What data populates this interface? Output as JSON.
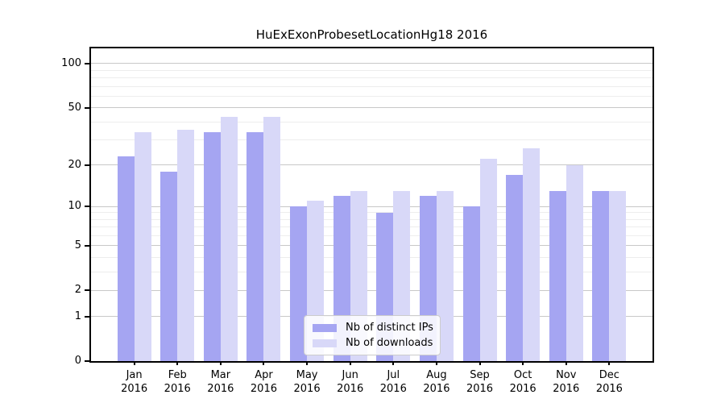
{
  "title": "HuExExonProbesetLocationHg18 2016",
  "chart_data": {
    "type": "bar",
    "title": "HuExExonProbesetLocationHg18 2016",
    "categories": [
      "Jan",
      "Feb",
      "Mar",
      "Apr",
      "May",
      "Jun",
      "Jul",
      "Aug",
      "Sep",
      "Oct",
      "Nov",
      "Dec"
    ],
    "year_label": "2016",
    "series": [
      {
        "name": "Nb of distinct IPs",
        "color": "#a5a5f2",
        "values": [
          23,
          18,
          34,
          34,
          10,
          12,
          9,
          12,
          10,
          17,
          13,
          13
        ]
      },
      {
        "name": "Nb of downloads",
        "color": "#d8d8f8",
        "values": [
          34,
          35,
          43,
          43,
          11,
          13,
          13,
          13,
          22,
          26,
          20,
          13
        ]
      }
    ],
    "yscale": "log1p",
    "ylim": [
      0,
      127
    ],
    "yticks": [
      0,
      1,
      2,
      5,
      10,
      20,
      50,
      100
    ],
    "gridlines_major": [
      1,
      2,
      5,
      10,
      20,
      50,
      100
    ],
    "gridlines_minor": [
      3,
      4,
      6,
      7,
      8,
      9,
      30,
      40,
      60,
      70,
      80,
      90
    ],
    "legend": {
      "position": "bottom-center",
      "entries": [
        "Nb of distinct IPs",
        "Nb of downloads"
      ]
    },
    "grid": "on",
    "xlabel": "",
    "ylabel": ""
  },
  "colors": {
    "bar_dark": "#a5a5f2",
    "bar_light": "#d8d8f8",
    "grid_major": "#c8c8c8",
    "grid_minor": "#ededed",
    "spine": "#000000"
  }
}
